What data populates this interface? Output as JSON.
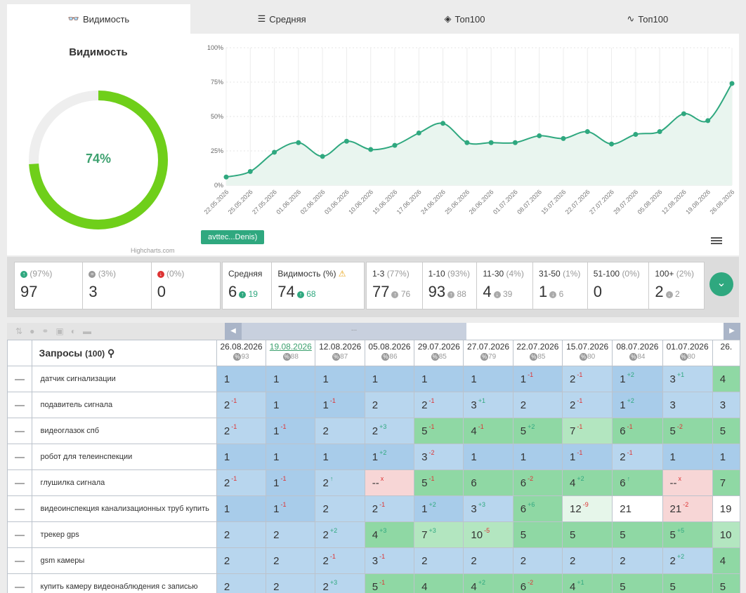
{
  "tabs": [
    {
      "label": "Видимость",
      "icon": "glasses-icon"
    },
    {
      "label": "Средняя",
      "icon": "bars-icon"
    },
    {
      "label": "Топ100",
      "icon": "layers-icon"
    },
    {
      "label": "Топ100",
      "icon": "pulse-icon"
    }
  ],
  "visibility": {
    "title": "Видимость",
    "value_label": "74%",
    "value": 74,
    "credits": "Highcharts.com",
    "series_button": "avttec...Denis)"
  },
  "chart_data": {
    "type": "area",
    "y_ticks": [
      "0%",
      "25%",
      "50%",
      "75%",
      "100%"
    ],
    "ylim": [
      0,
      100
    ],
    "x": [
      "22.05.2026",
      "25.05.2026",
      "27.05.2026",
      "01.06.2026",
      "02.06.2026",
      "03.06.2026",
      "10.06.2026",
      "15.06.2026",
      "17.06.2026",
      "24.06.2026",
      "25.06.2026",
      "26.06.2026",
      "01.07.2026",
      "08.07.2026",
      "15.07.2026",
      "22.07.2026",
      "27.07.2026",
      "29.07.2026",
      "05.08.2026",
      "12.08.2026",
      "19.08.2026",
      "26.08.2026"
    ],
    "values": [
      6,
      10,
      24,
      31,
      21,
      32,
      26,
      29,
      38,
      45,
      31,
      31,
      31,
      36,
      34,
      39,
      30,
      37,
      39,
      52,
      47,
      74
    ],
    "color": "#2fa87f"
  },
  "stats": {
    "basic": [
      {
        "label": "(97%)",
        "value": "97",
        "icon": "up"
      },
      {
        "label": "(3%)",
        "value": "3",
        "icon": "eq"
      },
      {
        "label": "(0%)",
        "value": "0",
        "icon": "down"
      }
    ],
    "avg": {
      "label": "Средняя",
      "value": "6",
      "delta": "19"
    },
    "vis": {
      "label": "Видимость (%)",
      "value": "74",
      "delta": "68"
    },
    "ranges": [
      {
        "name": "1-3",
        "pct": "(77%)",
        "value": "77",
        "delta": "76",
        "dir": "up"
      },
      {
        "name": "1-10",
        "pct": "(93%)",
        "value": "93",
        "delta": "88",
        "dir": "up"
      },
      {
        "name": "11-30",
        "pct": "(4%)",
        "value": "4",
        "delta": "39",
        "dir": "down"
      },
      {
        "name": "31-50",
        "pct": "(1%)",
        "value": "1",
        "delta": "6",
        "dir": "down"
      },
      {
        "name": "51-100",
        "pct": "(0%)",
        "value": "0",
        "delta": "",
        "dir": ""
      },
      {
        "name": "100+",
        "pct": "(2%)",
        "value": "2",
        "delta": "2",
        "dir": "down"
      }
    ]
  },
  "table": {
    "title": "Запросы",
    "count": "(100)",
    "scroll_thumb": "...",
    "dates": [
      {
        "date": "26.08.2026",
        "pct": "93"
      },
      {
        "date": "19.08.2026",
        "pct": "88"
      },
      {
        "date": "12.08.2026",
        "pct": "87"
      },
      {
        "date": "05.08.2026",
        "pct": "86"
      },
      {
        "date": "29.07.2026",
        "pct": "85"
      },
      {
        "date": "27.07.2026",
        "pct": "79"
      },
      {
        "date": "22.07.2026",
        "pct": "85"
      },
      {
        "date": "15.07.2026",
        "pct": "80"
      },
      {
        "date": "08.07.2026",
        "pct": "84"
      },
      {
        "date": "01.07.2026",
        "pct": "80"
      },
      {
        "date": "26.",
        "pct": ""
      }
    ],
    "rows": [
      {
        "kw": "датчик сигнализации",
        "cells": [
          [
            "1",
            "",
            "b"
          ],
          [
            "1",
            "",
            "b"
          ],
          [
            "1",
            "",
            "b"
          ],
          [
            "1",
            "",
            "b"
          ],
          [
            "1",
            "",
            "b"
          ],
          [
            "1",
            "",
            "b"
          ],
          [
            "1",
            "-1",
            "b"
          ],
          [
            "2",
            "-1",
            "b2"
          ],
          [
            "1",
            "+2",
            "b"
          ],
          [
            "3",
            "+1",
            "b2"
          ],
          [
            "4",
            "",
            "g"
          ]
        ]
      },
      {
        "kw": "подавитель сигнала",
        "cells": [
          [
            "2",
            "-1",
            "b2"
          ],
          [
            "1",
            "",
            "b"
          ],
          [
            "1",
            "-1",
            "b"
          ],
          [
            "2",
            "",
            "b2"
          ],
          [
            "2",
            "-1",
            "b2"
          ],
          [
            "3",
            "+1",
            "b2"
          ],
          [
            "2",
            "",
            "b2"
          ],
          [
            "2",
            "-1",
            "b2"
          ],
          [
            "1",
            "+2",
            "b"
          ],
          [
            "3",
            "",
            "b2"
          ],
          [
            "3",
            "",
            "b2"
          ]
        ]
      },
      {
        "kw": "видеоглазок спб",
        "cells": [
          [
            "2",
            "-1",
            "b2"
          ],
          [
            "1",
            "-1",
            "b"
          ],
          [
            "2",
            "",
            "b2"
          ],
          [
            "2",
            "+3",
            "b2"
          ],
          [
            "5",
            "-1",
            "g"
          ],
          [
            "4",
            "-1",
            "g"
          ],
          [
            "5",
            "+2",
            "g"
          ],
          [
            "7",
            "-1",
            "g2"
          ],
          [
            "6",
            "-1",
            "g"
          ],
          [
            "5",
            "-2",
            "g"
          ],
          [
            "5",
            "",
            "g"
          ]
        ]
      },
      {
        "kw": "робот для телеинспекции",
        "cells": [
          [
            "1",
            "",
            "b"
          ],
          [
            "1",
            "",
            "b"
          ],
          [
            "1",
            "",
            "b"
          ],
          [
            "1",
            "+2",
            "b"
          ],
          [
            "3",
            "-2",
            "b2"
          ],
          [
            "1",
            "",
            "b"
          ],
          [
            "1",
            "",
            "b"
          ],
          [
            "1",
            "-1",
            "b"
          ],
          [
            "2",
            "-1",
            "b2"
          ],
          [
            "1",
            "",
            "b"
          ],
          [
            "1",
            "",
            "b"
          ]
        ]
      },
      {
        "kw": "глушилка сигнала",
        "cells": [
          [
            "2",
            "-1",
            "b2"
          ],
          [
            "1",
            "-1",
            "b"
          ],
          [
            "2",
            "↑",
            "b2"
          ],
          [
            "--",
            "x",
            "r"
          ],
          [
            "5",
            "-1",
            "g"
          ],
          [
            "6",
            "",
            "g"
          ],
          [
            "6",
            "-2",
            "g"
          ],
          [
            "4",
            "+2",
            "g"
          ],
          [
            "6",
            "↑",
            "g"
          ],
          [
            "--",
            "x",
            "r"
          ],
          [
            "7",
            "",
            "g"
          ]
        ]
      },
      {
        "kw": "видеоинспекция канализационных труб купить",
        "cells": [
          [
            "1",
            "",
            "b"
          ],
          [
            "1",
            "-1",
            "b"
          ],
          [
            "2",
            "",
            "b2"
          ],
          [
            "2",
            "-1",
            "b2"
          ],
          [
            "1",
            "+2",
            "b"
          ],
          [
            "3",
            "+3",
            "b2"
          ],
          [
            "6",
            "+6",
            "g"
          ],
          [
            "12",
            "-9",
            "lg"
          ],
          [
            "21",
            "",
            "w"
          ],
          [
            "21",
            "-2",
            "r"
          ],
          [
            "19",
            "",
            "w"
          ]
        ]
      },
      {
        "kw": "трекер gps",
        "cells": [
          [
            "2",
            "",
            "b2"
          ],
          [
            "2",
            "",
            "b2"
          ],
          [
            "2",
            "+2",
            "b2"
          ],
          [
            "4",
            "+3",
            "g"
          ],
          [
            "7",
            "+3",
            "g2"
          ],
          [
            "10",
            "-5",
            "g2"
          ],
          [
            "5",
            "",
            "g"
          ],
          [
            "5",
            "",
            "g"
          ],
          [
            "5",
            "",
            "g"
          ],
          [
            "5",
            "+5",
            "g"
          ],
          [
            "10",
            "",
            "g2"
          ]
        ]
      },
      {
        "kw": "gsm камеры",
        "cells": [
          [
            "2",
            "",
            "b2"
          ],
          [
            "2",
            "",
            "b2"
          ],
          [
            "2",
            "-1",
            "b2"
          ],
          [
            "3",
            "-1",
            "b2"
          ],
          [
            "2",
            "",
            "b2"
          ],
          [
            "2",
            "",
            "b2"
          ],
          [
            "2",
            "",
            "b2"
          ],
          [
            "2",
            "",
            "b2"
          ],
          [
            "2",
            "",
            "b2"
          ],
          [
            "2",
            "+2",
            "b2"
          ],
          [
            "4",
            "",
            "g"
          ]
        ]
      },
      {
        "kw": "купить камеру видеонаблюдения с записью",
        "cells": [
          [
            "2",
            "",
            "b2"
          ],
          [
            "2",
            "",
            "b2"
          ],
          [
            "2",
            "+3",
            "b2"
          ],
          [
            "5",
            "-1",
            "g"
          ],
          [
            "4",
            "",
            "g"
          ],
          [
            "4",
            "+2",
            "g"
          ],
          [
            "6",
            "-2",
            "g"
          ],
          [
            "4",
            "+1",
            "g"
          ],
          [
            "5",
            "",
            "g"
          ],
          [
            "5",
            "",
            "g"
          ],
          [
            "5",
            "",
            "g"
          ]
        ]
      }
    ]
  }
}
